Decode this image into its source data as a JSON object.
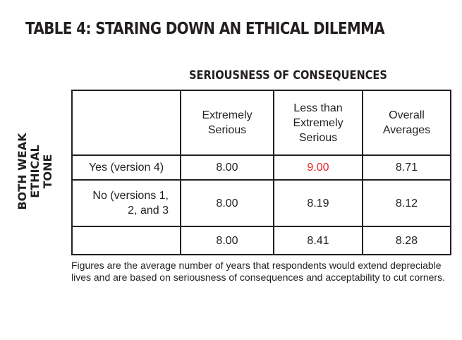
{
  "title": "TABLE 4: STARING DOWN AN ETHICAL DILEMMA",
  "column_group_header": "SERIOUSNESS OF CONSEQUENCES",
  "row_group_header": {
    "line1": "BOTH WEAK",
    "line2": "ETHICAL",
    "line3": "TONE"
  },
  "table": {
    "headers": [
      "",
      "Extremely Serious",
      "Less than Extremely Serious",
      "Overall Averages"
    ],
    "rows": [
      {
        "label": "Yes (version 4)",
        "values": [
          "8.00",
          "9.00",
          "8.71"
        ]
      },
      {
        "label": "No (versions 1, 2, and 3",
        "values": [
          "8.00",
          "8.19",
          "8.12"
        ]
      },
      {
        "label": "",
        "values": [
          "8.00",
          "8.41",
          "8.28"
        ]
      }
    ],
    "highlight_color": "#e3242b"
  },
  "footnote": "Figures are the average number of years that respondents would extend depreciable lives and are based on seriousness of consequences and acceptability to cut corners."
}
